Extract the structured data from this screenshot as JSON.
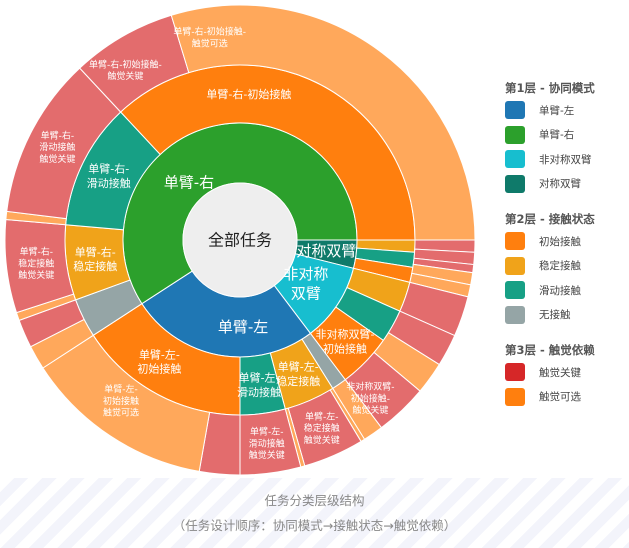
{
  "chart_data": {
    "type": "sunburst",
    "center_label": "全部任务",
    "colors": {
      "single_left": "#1f77b4",
      "single_right": "#2ca02c",
      "asym_dual": "#17becf",
      "sym_dual": "#0f7a6a",
      "initial": "#ff7f0e",
      "stable": "#f0a31a",
      "sliding": "#17a085",
      "none": "#95a5a6",
      "critical": "#d62728",
      "optional": "#ff7f0e"
    },
    "ring1": [
      {
        "name": "对称双臂",
        "label": "对称双臂",
        "value": 14,
        "color": "#0f7a6a"
      },
      {
        "name": "非对称双臂",
        "label": "非对称\n双臂",
        "value": 39,
        "color": "#17becf"
      },
      {
        "name": "单臂-左",
        "label": "单臂-左",
        "value": 94,
        "color": "#1f77b4"
      },
      {
        "name": "单臂-右",
        "label": "单臂-右",
        "value": 213,
        "color": "#2ca02c"
      }
    ],
    "ring2": [
      {
        "name": "对称双臂-稳定接触",
        "label": "",
        "value": 4,
        "color": "#f0a31a"
      },
      {
        "name": "对称双臂-滑动接触",
        "label": "",
        "value": 5,
        "color": "#17a085"
      },
      {
        "name": "对称双臂-初始接触",
        "label": "",
        "value": 5,
        "color": "#ff7f0e"
      },
      {
        "name": "非对称双臂-稳定接触",
        "label": "",
        "value": 10,
        "color": "#f0a31a"
      },
      {
        "name": "非对称双臂-滑动接触",
        "label": "",
        "value": 11,
        "color": "#17a085"
      },
      {
        "name": "非对称双臂-初始接触",
        "label": "非对称双臂-\n初始接触",
        "value": 18,
        "color": "#ff7f0e"
      },
      {
        "name": "单臂-左-无接触",
        "label": "",
        "value": 5,
        "color": "#95a5a6"
      },
      {
        "name": "单臂-左-稳定接触",
        "label": "单臂-左-\n稳定接触",
        "value": 17,
        "color": "#f0a31a"
      },
      {
        "name": "单臂-左-滑动接触",
        "label": "单臂-左-\n滑动接触",
        "value": 15,
        "color": "#17a085"
      },
      {
        "name": "单臂-左-初始接触",
        "label": "单臂-左-\n初始接触",
        "value": 57,
        "color": "#ff7f0e"
      },
      {
        "name": "单臂-右-无接触",
        "label": "",
        "value": 13,
        "color": "#95a5a6"
      },
      {
        "name": "单臂-右-稳定接触",
        "label": "单臂-右-\n稳定接触",
        "value": 25,
        "color": "#f0a31a"
      },
      {
        "name": "单臂-右-滑动接触",
        "label": "单臂-右-\n滑动接触",
        "value": 42,
        "color": "#17a085"
      },
      {
        "name": "单臂-右-初始接触",
        "label": "单臂-右-初始接触",
        "value": 133,
        "color": "#ff7f0e"
      }
    ],
    "ring3": [
      {
        "name": "对称双臂-稳定接触-触觉关键",
        "label": "",
        "value": 3,
        "color": "#d62728"
      },
      {
        "name": "对称双臂-滑动接触-触觉关键",
        "label": "",
        "value": 3,
        "color": "#d62728"
      },
      {
        "name": "对称双臂-初始接触-触觉关键",
        "label": "",
        "value": 2,
        "color": "#d62728"
      },
      {
        "name": "对称双臂-初始接触-触觉可选",
        "label": "",
        "value": 3,
        "color": "#ff7f0e"
      },
      {
        "name": "对称双臂-初始接触-触觉可选",
        "label": "",
        "value": 3,
        "color": "#ff7f0e"
      },
      {
        "name": "非对称双臂-稳定接触-触觉关键",
        "label": "",
        "value": 10,
        "color": "#d62728"
      },
      {
        "name": "非对称双臂-滑动接触-触觉关键",
        "label": "",
        "value": 8,
        "color": "#d62728"
      },
      {
        "name": "非对称双臂-初始接触-触觉可选",
        "label": "",
        "value": 8,
        "color": "#ff7f0e"
      },
      {
        "name": "非对称双臂-初始接触-触觉关键",
        "label": "非对称双臂-\n初始接触-\n触觉关键",
        "value": 13,
        "color": "#d62728"
      },
      {
        "name": "单臂-左-无接触-触觉可选",
        "label": "",
        "value": 5,
        "color": "#ff7f0e"
      },
      {
        "name": "单臂-左-无接触-触觉可选",
        "label": "",
        "value": 1,
        "color": "#ff7f0e"
      },
      {
        "name": "单臂-左-稳定接触-触觉关键",
        "label": "单臂-左-\n稳定接触\n触觉关键",
        "value": 15,
        "color": "#d62728"
      },
      {
        "name": "单臂-左-稳定接触-触觉可选",
        "label": "",
        "value": 1,
        "color": "#ff7f0e"
      },
      {
        "name": "单臂-左-滑动接触-触觉关键",
        "label": "单臂-左-\n滑动接触\n触觉关键",
        "value": 15,
        "color": "#d62728"
      },
      {
        "name": "单臂-左-初始接触-触觉关键",
        "label": "",
        "value": 10,
        "color": "#d62728"
      },
      {
        "name": "单臂-左-初始接触-触觉可选",
        "label": "单臂-左-\n初始接触\n触觉可选",
        "value": 47,
        "color": "#ff7f0e"
      },
      {
        "name": "单臂-右-无接触-触觉可选",
        "label": "",
        "value": 6,
        "color": "#ff7f0e"
      },
      {
        "name": "单臂-右-无接触-触觉关键",
        "label": "",
        "value": 7,
        "color": "#d62728"
      },
      {
        "name": "单臂-右-稳定接触-触觉可选",
        "label": "",
        "value": 2,
        "color": "#ff7f0e"
      },
      {
        "name": "单臂-右-稳定接触-触觉关键",
        "label": "单臂-右-\n稳定接触\n触觉关键",
        "value": 23,
        "color": "#d62728"
      },
      {
        "name": "单臂-右-滑动接触-触觉可选",
        "label": "",
        "value": 2,
        "color": "#ff7f0e"
      },
      {
        "name": "单臂-右-滑动接触-触觉关键",
        "label": "单臂-右-\n滑动接触\n触觉关键",
        "value": 40,
        "color": "#d62728"
      },
      {
        "name": "单臂-右-初始接触-触觉关键",
        "label": "单臂-右-初始接触-\n触觉关键",
        "value": 26,
        "color": "#d62728"
      },
      {
        "name": "单臂-右-初始接触-触觉可选",
        "label": "单臂-右-初始接触-\n触觉可选",
        "value": 107,
        "color": "#ff7f0e"
      }
    ]
  },
  "legend": {
    "groups": [
      {
        "title": "第1层 - 协同模式",
        "items": [
          {
            "label": "单臂-左",
            "color": "#1f77b4"
          },
          {
            "label": "单臂-右",
            "color": "#2ca02c"
          },
          {
            "label": "非对称双臂",
            "color": "#17becf"
          },
          {
            "label": "对称双臂",
            "color": "#0f7a6a"
          }
        ]
      },
      {
        "title": "第2层 - 接触状态",
        "items": [
          {
            "label": "初始接触",
            "color": "#ff7f0e"
          },
          {
            "label": "稳定接触",
            "color": "#f0a31a"
          },
          {
            "label": "滑动接触",
            "color": "#17a085"
          },
          {
            "label": "无接触",
            "color": "#95a5a6"
          }
        ]
      },
      {
        "title": "第3层 - 触觉依赖",
        "items": [
          {
            "label": "触觉关键",
            "color": "#d62728"
          },
          {
            "label": "触觉可选",
            "color": "#ff7f0e"
          }
        ]
      }
    ]
  },
  "caption": {
    "title": "任务分类层级结构",
    "subtitle": "（任务设计顺序：协同模式→接触状态→触觉依赖）"
  }
}
